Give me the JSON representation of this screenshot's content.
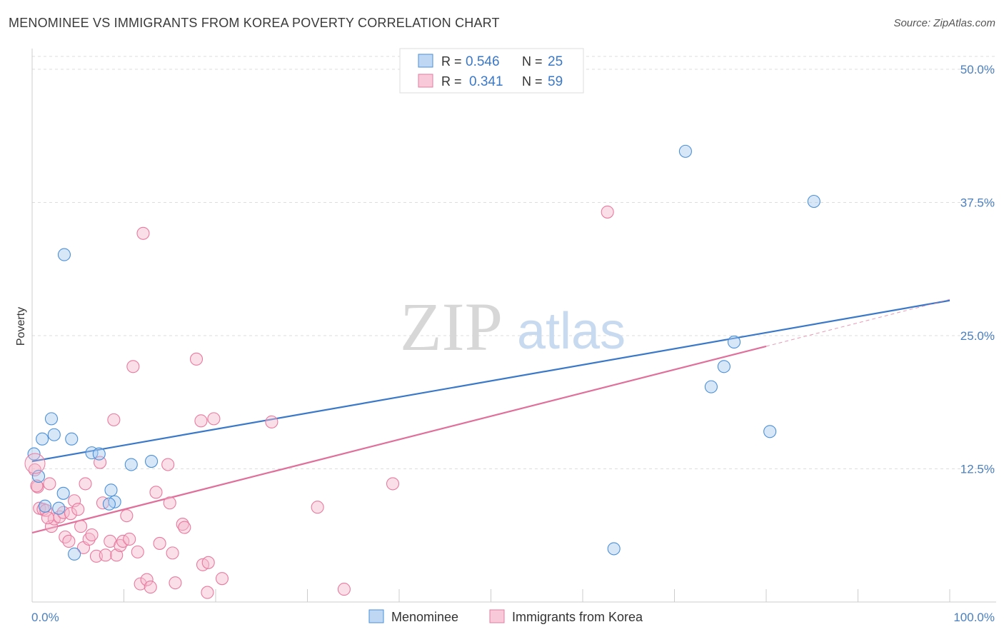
{
  "title": "MENOMINEE VS IMMIGRANTS FROM KOREA POVERTY CORRELATION CHART",
  "source": "Source: ZipAtlas.com",
  "watermark": {
    "zip": "ZIP",
    "atlas": "atlas"
  },
  "colors": {
    "blue": "#4a90d9",
    "blue_fill": "#a9c9ef",
    "blue_line": "#3a78c9",
    "pink": "#e87aa0",
    "pink_fill": "#f5b8cc",
    "pink_line": "#e0709a",
    "value_text": "#3a78c9",
    "axis_text": "#4a7fc0"
  },
  "legend": {
    "items": [
      {
        "r_label": "R =",
        "r_value": "0.546",
        "n_label": "N =",
        "n_value": "25"
      },
      {
        "r_label": "R =",
        "r_value": "0.341",
        "n_label": "N =",
        "n_value": "59"
      }
    ]
  },
  "chart_data": {
    "type": "scatter",
    "title": "MENOMINEE VS IMMIGRANTS FROM KOREA POVERTY CORRELATION CHART",
    "xlabel": "",
    "ylabel": "Poverty",
    "xlim": [
      0,
      100
    ],
    "ylim": [
      0,
      50
    ],
    "x_tick_labels": [
      "0.0%",
      "100.0%"
    ],
    "y_ticks": [
      12.5,
      25.0,
      37.5,
      50.0
    ],
    "y_tick_labels": [
      "12.5%",
      "25.0%",
      "37.5%",
      "50.0%"
    ],
    "grid": true,
    "legend_position": "top-center",
    "series": [
      {
        "name": "Menominee",
        "color": "blue",
        "r": 0.546,
        "n": 25,
        "trend": {
          "x0": 0,
          "y0": 13.2,
          "x1": 100,
          "y1": 28.3
        },
        "points": [
          {
            "x": 0.2,
            "y": 13.9
          },
          {
            "x": 0.7,
            "y": 11.8
          },
          {
            "x": 1.1,
            "y": 15.3
          },
          {
            "x": 2.1,
            "y": 17.2
          },
          {
            "x": 2.4,
            "y": 15.7
          },
          {
            "x": 3.5,
            "y": 32.6
          },
          {
            "x": 3.4,
            "y": 10.2
          },
          {
            "x": 1.4,
            "y": 9.0
          },
          {
            "x": 2.9,
            "y": 8.8
          },
          {
            "x": 4.3,
            "y": 15.3
          },
          {
            "x": 4.6,
            "y": 4.5
          },
          {
            "x": 6.5,
            "y": 14.0
          },
          {
            "x": 7.3,
            "y": 13.9
          },
          {
            "x": 8.6,
            "y": 10.5
          },
          {
            "x": 9.0,
            "y": 9.4
          },
          {
            "x": 8.4,
            "y": 9.2
          },
          {
            "x": 10.8,
            "y": 12.9
          },
          {
            "x": 13.0,
            "y": 13.2
          },
          {
            "x": 63.4,
            "y": 5.0
          },
          {
            "x": 71.2,
            "y": 42.3
          },
          {
            "x": 74.0,
            "y": 20.2
          },
          {
            "x": 75.4,
            "y": 22.1
          },
          {
            "x": 76.5,
            "y": 24.4
          },
          {
            "x": 80.4,
            "y": 16.0
          },
          {
            "x": 85.2,
            "y": 37.6
          }
        ]
      },
      {
        "name": "Immigrants from Korea",
        "color": "pink",
        "r": 0.341,
        "n": 59,
        "trend": {
          "x0": 0,
          "y0": 6.5,
          "x1": 80,
          "y1": 24.0
        },
        "trend_ext": {
          "x0": 80,
          "y0": 24.0,
          "x1": 100,
          "y1": 28.4
        },
        "points": [
          {
            "x": 0.3,
            "y": 12.4
          },
          {
            "x": 0.6,
            "y": 10.8
          },
          {
            "x": 0.8,
            "y": 8.8
          },
          {
            "x": 1.2,
            "y": 8.7
          },
          {
            "x": 1.5,
            "y": 8.6
          },
          {
            "x": 1.9,
            "y": 11.1
          },
          {
            "x": 2.1,
            "y": 7.1
          },
          {
            "x": 2.4,
            "y": 7.8
          },
          {
            "x": 3.0,
            "y": 8.0
          },
          {
            "x": 3.4,
            "y": 8.4
          },
          {
            "x": 3.6,
            "y": 6.1
          },
          {
            "x": 4.2,
            "y": 8.3
          },
          {
            "x": 4.6,
            "y": 9.5
          },
          {
            "x": 5.0,
            "y": 8.7
          },
          {
            "x": 5.3,
            "y": 7.1
          },
          {
            "x": 5.6,
            "y": 5.1
          },
          {
            "x": 5.8,
            "y": 11.1
          },
          {
            "x": 6.2,
            "y": 5.9
          },
          {
            "x": 6.5,
            "y": 6.3
          },
          {
            "x": 7.0,
            "y": 4.3
          },
          {
            "x": 7.4,
            "y": 13.1
          },
          {
            "x": 7.7,
            "y": 9.3
          },
          {
            "x": 8.0,
            "y": 4.4
          },
          {
            "x": 8.5,
            "y": 5.7
          },
          {
            "x": 8.9,
            "y": 17.1
          },
          {
            "x": 9.2,
            "y": 4.4
          },
          {
            "x": 9.6,
            "y": 5.3
          },
          {
            "x": 9.9,
            "y": 5.7
          },
          {
            "x": 10.3,
            "y": 8.1
          },
          {
            "x": 11.0,
            "y": 22.1
          },
          {
            "x": 11.5,
            "y": 4.7
          },
          {
            "x": 11.8,
            "y": 1.7
          },
          {
            "x": 12.1,
            "y": 34.6
          },
          {
            "x": 12.5,
            "y": 2.1
          },
          {
            "x": 12.9,
            "y": 1.4
          },
          {
            "x": 13.5,
            "y": 10.3
          },
          {
            "x": 13.9,
            "y": 5.5
          },
          {
            "x": 14.8,
            "y": 12.9
          },
          {
            "x": 15.0,
            "y": 9.3
          },
          {
            "x": 15.3,
            "y": 4.6
          },
          {
            "x": 15.6,
            "y": 1.8
          },
          {
            "x": 16.4,
            "y": 7.3
          },
          {
            "x": 16.6,
            "y": 7.0
          },
          {
            "x": 17.9,
            "y": 22.8
          },
          {
            "x": 18.4,
            "y": 17.0
          },
          {
            "x": 18.6,
            "y": 3.5
          },
          {
            "x": 19.1,
            "y": 0.9
          },
          {
            "x": 19.2,
            "y": 3.7
          },
          {
            "x": 19.8,
            "y": 17.2
          },
          {
            "x": 20.7,
            "y": 2.2
          },
          {
            "x": 26.1,
            "y": 16.9
          },
          {
            "x": 31.1,
            "y": 8.9
          },
          {
            "x": 34.0,
            "y": 1.2
          },
          {
            "x": 39.3,
            "y": 11.1
          },
          {
            "x": 62.7,
            "y": 36.6
          },
          {
            "x": 0.5,
            "y": 10.9
          },
          {
            "x": 1.7,
            "y": 7.9
          },
          {
            "x": 4.0,
            "y": 5.7
          },
          {
            "x": 10.6,
            "y": 5.9
          }
        ]
      }
    ]
  },
  "bottom_legend": {
    "items": [
      "Menominee",
      "Immigrants from Korea"
    ]
  }
}
